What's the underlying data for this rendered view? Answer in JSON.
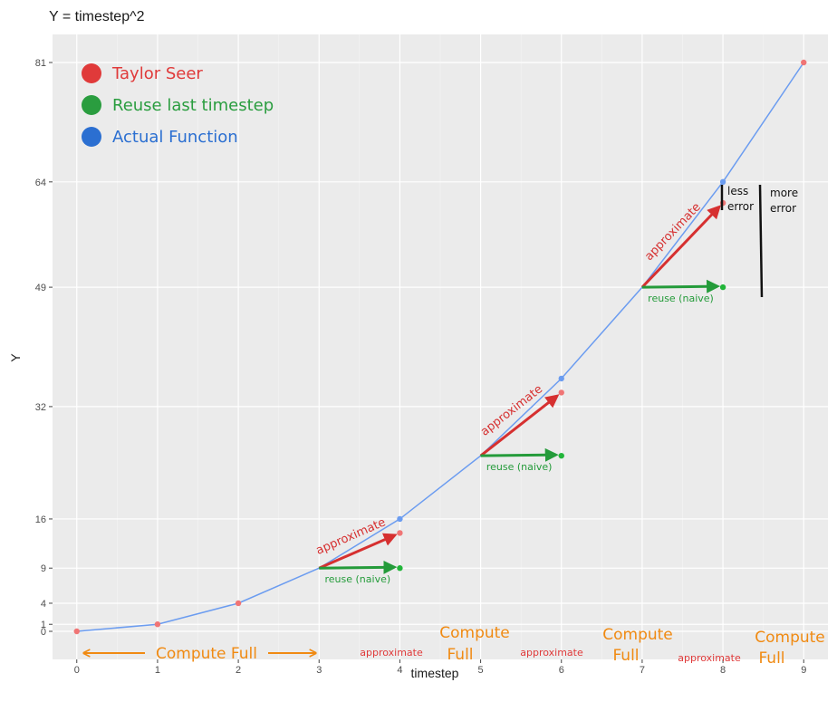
{
  "chart_data": {
    "type": "line",
    "title": "Y = timestep^2",
    "xlabel": "timestep",
    "ylabel": "Y",
    "xlim": [
      -0.3,
      9.3
    ],
    "ylim": [
      -4,
      85
    ],
    "x_ticks": [
      0,
      1,
      2,
      3,
      4,
      5,
      6,
      7,
      8,
      9
    ],
    "y_ticks": [
      0,
      1,
      4,
      9,
      16,
      32,
      49,
      64,
      81
    ],
    "grid": true,
    "legend_position": "top-left",
    "series": [
      {
        "name": "Actual Function",
        "color": "#2b6fd1",
        "x": [
          0,
          1,
          2,
          3,
          4,
          5,
          6,
          7,
          8,
          9
        ],
        "y": [
          0,
          1,
          4,
          9,
          16,
          25,
          36,
          49,
          64,
          81
        ],
        "point_x": [
          4,
          6,
          8
        ],
        "point_y": [
          16,
          36,
          64
        ],
        "point_color": "#6b9cf0"
      },
      {
        "name": "Taylor Seer",
        "color": "#e03a3a",
        "x": [
          0,
          1,
          2,
          4,
          6,
          8,
          9
        ],
        "y": [
          0,
          1,
          4,
          14,
          34,
          61,
          81
        ],
        "point_color": "#f07575"
      },
      {
        "name": "Reuse last timestep",
        "color": "#2a9d3f",
        "x": [
          4,
          6,
          8
        ],
        "y": [
          9,
          25,
          49
        ],
        "point_color": "#22b53a"
      }
    ],
    "arrows": [
      {
        "kind": "approximate",
        "from": [
          3,
          9
        ],
        "to": [
          4,
          14
        ]
      },
      {
        "kind": "reuse",
        "from": [
          3,
          9
        ],
        "to": [
          4,
          9
        ]
      },
      {
        "kind": "approximate",
        "from": [
          5,
          25
        ],
        "to": [
          6,
          34
        ]
      },
      {
        "kind": "reuse",
        "from": [
          5,
          25
        ],
        "to": [
          6,
          25
        ]
      },
      {
        "kind": "approximate",
        "from": [
          7,
          49
        ],
        "to": [
          8,
          61
        ]
      },
      {
        "kind": "reuse",
        "from": [
          7,
          49
        ],
        "to": [
          8,
          49
        ]
      }
    ],
    "annotations": {
      "approximate_label": "approximate",
      "reuse_label": "reuse (naive)",
      "compute_full": "Compute Full",
      "compute": "Compute",
      "full": "Full",
      "approx_small": "approximate",
      "less": "less",
      "more": "more",
      "error": "error"
    }
  }
}
